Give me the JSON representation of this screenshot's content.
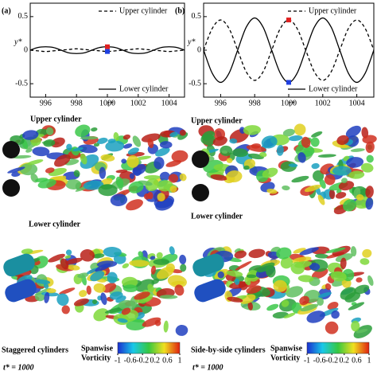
{
  "chart_data": [
    {
      "type": "line",
      "panel_label": "(a)",
      "x_label": "t*",
      "y_label": "y*",
      "x": [
        995,
        995.5,
        996,
        996.5,
        997,
        997.5,
        998,
        998.5,
        999,
        999.5,
        1000,
        1000.5,
        1001,
        1001.5,
        1002,
        1002.5,
        1003,
        1003.5,
        1004,
        1004.5,
        1005
      ],
      "series": [
        {
          "name": "Upper cylinder",
          "color": "#000000",
          "line_style": "dashed",
          "values": [
            0,
            -0.01,
            -0.02,
            -0.01,
            0,
            0.01,
            0.02,
            0.01,
            0,
            -0.01,
            -0.02,
            -0.01,
            0,
            0.01,
            0.02,
            0.01,
            0,
            -0.01,
            -0.02,
            -0.01,
            0
          ]
        },
        {
          "name": "Lower cylinder",
          "color": "#000000",
          "line_style": "solid",
          "values": [
            0,
            0.04,
            0.05,
            0.04,
            0,
            -0.04,
            -0.05,
            -0.04,
            0,
            0.04,
            0.05,
            0.04,
            0,
            -0.04,
            -0.05,
            -0.04,
            0,
            0.04,
            0.05,
            0.04,
            0
          ]
        }
      ],
      "points": [
        {
          "x": 1000,
          "y": 0.05,
          "color": "#e02020"
        },
        {
          "x": 1000,
          "y": -0.02,
          "color": "#2040e0"
        }
      ],
      "xlim": [
        995,
        1005
      ],
      "xticks": [
        996,
        998,
        1000,
        1002,
        1004
      ],
      "ylim": [
        -0.7,
        0.7
      ],
      "yticks": [
        0.5,
        0,
        -0.5
      ]
    },
    {
      "type": "line",
      "panel_label": "(b)",
      "x_label": "t*",
      "y_label": "y*",
      "x": [
        995,
        995.5,
        996,
        996.5,
        997,
        997.5,
        998,
        998.5,
        999,
        999.5,
        1000,
        1000.5,
        1001,
        1001.5,
        1002,
        1002.5,
        1003,
        1003.5,
        1004,
        1004.5,
        1005
      ],
      "series": [
        {
          "name": "Upper cylinder",
          "color": "#000000",
          "line_style": "dashed",
          "values": [
            0,
            0.32,
            0.45,
            0.32,
            0,
            -0.32,
            -0.45,
            -0.32,
            0,
            0.32,
            0.45,
            0.32,
            0,
            -0.32,
            -0.45,
            -0.32,
            0,
            0.32,
            0.45,
            0.32,
            0
          ]
        },
        {
          "name": "Lower cylinder",
          "color": "#000000",
          "line_style": "solid",
          "values": [
            0,
            -0.34,
            -0.48,
            -0.34,
            0,
            0.34,
            0.48,
            0.34,
            0,
            -0.34,
            -0.48,
            -0.34,
            0,
            0.34,
            0.48,
            0.34,
            0,
            -0.34,
            -0.48,
            -0.34,
            0
          ]
        }
      ],
      "points": [
        {
          "x": 1000,
          "y": 0.45,
          "color": "#e02020"
        },
        {
          "x": 1000,
          "y": -0.48,
          "color": "#2040e0"
        }
      ],
      "xlim": [
        995,
        1005
      ],
      "xticks": [
        996,
        998,
        1000,
        1002,
        1004
      ],
      "ylim": [
        -0.7,
        0.7
      ],
      "yticks": [
        0.5,
        0,
        -0.5
      ]
    }
  ],
  "panels": [
    {
      "upper_label": "Upper cylinder",
      "lower_label": "Lower cylinder",
      "caption": "Staggered cylinders",
      "time": "t* = 1000"
    },
    {
      "upper_label": "Upper cylinder",
      "lower_label": "Lower cylinder",
      "caption": "Side-by-side cylinders",
      "time": "t* = 1000"
    }
  ],
  "colorbar": {
    "title_lines": [
      "Spanwise",
      "Vorticity"
    ],
    "lim": [
      -1,
      1
    ],
    "ticks": [
      -1,
      -0.6,
      -0.2,
      0.2,
      0.6,
      1
    ]
  }
}
